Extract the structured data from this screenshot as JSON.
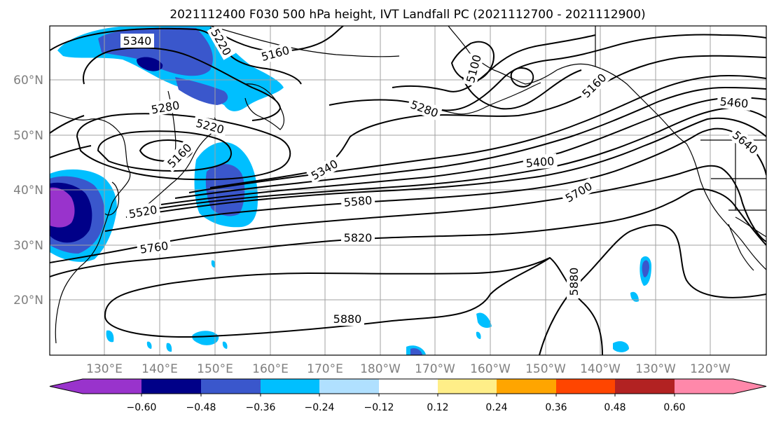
{
  "title": "2021112400 F030 500 hPa height, IVT Landfall PC (2021112700 - 2021112900)",
  "lat_labels": [
    "60°N",
    "50°N",
    "40°N",
    "30°N",
    "20°N"
  ],
  "lon_labels": [
    "130°E",
    "140°E",
    "150°E",
    "160°E",
    "170°E",
    "180°W",
    "170°W",
    "160°W",
    "150°W",
    "140°W",
    "130°W",
    "120°W"
  ],
  "contour_labels": [
    "5340",
    "5220",
    "5160",
    "5100",
    "5280",
    "5160",
    "5460",
    "5280",
    "5220",
    "5160",
    "5640",
    "5340",
    "5400",
    "5580",
    "5700",
    "5520",
    "5820",
    "5760",
    "5880",
    "5880"
  ],
  "colorbar": {
    "ticks": [
      "−0.60",
      "−0.48",
      "−0.36",
      "−0.24",
      "−0.12",
      "0.12",
      "0.24",
      "0.36",
      "0.48",
      "0.60"
    ],
    "colors": [
      "#9933cc",
      "#000088",
      "#3a57cc",
      "#00bfff",
      "#b0e0ff",
      "#ffffff",
      "#ffee88",
      "#ffa500",
      "#ff4500",
      "#b22222",
      "#ff88aa"
    ]
  }
}
